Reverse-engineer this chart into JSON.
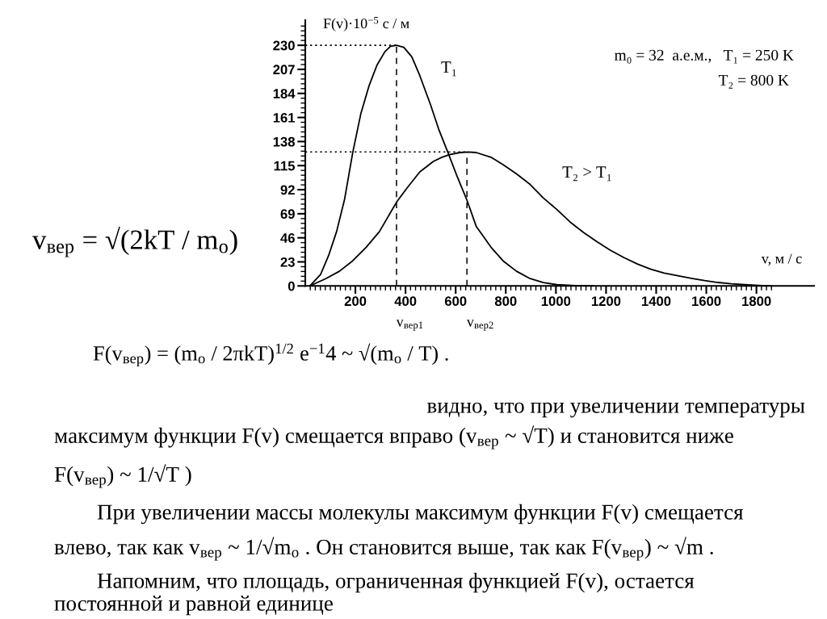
{
  "chart_data": {
    "type": "line",
    "xlabel": "v, м / с",
    "ylabel": "F(v)·10$^{−5}$ с / м",
    "xlim": [
      0,
      2030
    ],
    "ylim": [
      0,
      254
    ],
    "xticks": [
      {
        "value": 20,
        "label": null
      },
      {
        "value": 40,
        "label": null
      },
      {
        "value": 60,
        "label": null
      },
      {
        "value": 80,
        "label": null
      },
      {
        "value": 100,
        "label": null
      },
      {
        "value": 120,
        "label": null
      },
      {
        "value": 140,
        "label": null
      },
      {
        "value": 160,
        "label": null
      },
      {
        "value": 180,
        "label": null
      },
      200,
      {
        "value": 220,
        "label": null
      },
      {
        "value": 240,
        "label": null
      },
      {
        "value": 260,
        "label": null
      },
      {
        "value": 280,
        "label": null
      },
      {
        "value": 300,
        "label": null
      },
      {
        "value": 320,
        "label": null
      },
      {
        "value": 340,
        "label": null
      },
      {
        "value": 360,
        "label": null
      },
      {
        "value": 380,
        "label": null
      },
      400,
      {
        "value": 420,
        "label": null
      },
      {
        "value": 440,
        "label": null
      },
      {
        "value": 460,
        "label": null
      },
      {
        "value": 480,
        "label": null
      },
      {
        "value": 500,
        "label": null
      },
      {
        "value": 520,
        "label": null
      },
      {
        "value": 540,
        "label": null
      },
      {
        "value": 560,
        "label": null
      },
      {
        "value": 580,
        "label": null
      },
      600,
      {
        "value": 620,
        "label": null
      },
      {
        "value": 640,
        "label": null
      },
      {
        "value": 660,
        "label": null
      },
      {
        "value": 680,
        "label": null
      },
      {
        "value": 700,
        "label": null
      },
      {
        "value": 720,
        "label": null
      },
      {
        "value": 740,
        "label": null
      },
      {
        "value": 760,
        "label": null
      },
      {
        "value": 780,
        "label": null
      },
      800,
      {
        "value": 820,
        "label": null
      },
      {
        "value": 840,
        "label": null
      },
      {
        "value": 860,
        "label": null
      },
      {
        "value": 880,
        "label": null
      },
      {
        "value": 900,
        "label": null
      },
      {
        "value": 920,
        "label": null
      },
      {
        "value": 940,
        "label": null
      },
      {
        "value": 960,
        "label": null
      },
      {
        "value": 980,
        "label": null
      },
      1000,
      {
        "value": 1020,
        "label": null
      },
      {
        "value": 1040,
        "label": null
      },
      {
        "value": 1060,
        "label": null
      },
      {
        "value": 1080,
        "label": null
      },
      {
        "value": 1100,
        "label": null
      },
      {
        "value": 1120,
        "label": null
      },
      {
        "value": 1140,
        "label": null
      },
      {
        "value": 1160,
        "label": null
      },
      {
        "value": 1180,
        "label": null
      },
      1200,
      {
        "value": 1220,
        "label": null
      },
      {
        "value": 1240,
        "label": null
      },
      {
        "value": 1260,
        "label": null
      },
      {
        "value": 1280,
        "label": null
      },
      {
        "value": 1300,
        "label": null
      },
      {
        "value": 1320,
        "label": null
      },
      {
        "value": 1340,
        "label": null
      },
      {
        "value": 1360,
        "label": null
      },
      {
        "value": 1380,
        "label": null
      },
      1400,
      {
        "value": 1420,
        "label": null
      },
      {
        "value": 1440,
        "label": null
      },
      {
        "value": 1460,
        "label": null
      },
      {
        "value": 1480,
        "label": null
      },
      {
        "value": 1500,
        "label": null
      },
      {
        "value": 1520,
        "label": null
      },
      {
        "value": 1540,
        "label": null
      },
      {
        "value": 1560,
        "label": null
      },
      {
        "value": 1580,
        "label": null
      },
      1600,
      {
        "value": 1620,
        "label": null
      },
      {
        "value": 1640,
        "label": null
      },
      {
        "value": 1660,
        "label": null
      },
      {
        "value": 1680,
        "label": null
      },
      {
        "value": 1700,
        "label": null
      },
      {
        "value": 1720,
        "label": null
      },
      {
        "value": 1740,
        "label": null
      },
      {
        "value": 1760,
        "label": null
      },
      {
        "value": 1780,
        "label": null
      },
      1800,
      {
        "value": 1820,
        "label": null
      },
      {
        "value": 1840,
        "label": null
      },
      {
        "value": 1860,
        "label": null
      }
    ],
    "yticks": [
      0,
      {
        "value": 4.6,
        "label": null
      },
      {
        "value": 9.2,
        "label": null
      },
      {
        "value": 13.8,
        "label": null
      },
      {
        "value": 18.4,
        "label": null
      },
      23,
      {
        "value": 27.6,
        "label": null
      },
      {
        "value": 32.2,
        "label": null
      },
      {
        "value": 36.8,
        "label": null
      },
      {
        "value": 41.4,
        "label": null
      },
      46,
      {
        "value": 50.6,
        "label": null
      },
      {
        "value": 55.2,
        "label": null
      },
      {
        "value": 59.8,
        "label": null
      },
      {
        "value": 64.4,
        "label": null
      },
      69,
      {
        "value": 73.6,
        "label": null
      },
      {
        "value": 78.2,
        "label": null
      },
      {
        "value": 82.8,
        "label": null
      },
      {
        "value": 87.4,
        "label": null
      },
      92,
      {
        "value": 96.6,
        "label": null
      },
      {
        "value": 101.2,
        "label": null
      },
      {
        "value": 105.8,
        "label": null
      },
      {
        "value": 110.4,
        "label": null
      },
      115,
      {
        "value": 119.6,
        "label": null
      },
      {
        "value": 124.2,
        "label": null
      },
      {
        "value": 128.8,
        "label": null
      },
      {
        "value": 133.4,
        "label": null
      },
      138,
      {
        "value": 142.6,
        "label": null
      },
      {
        "value": 147.2,
        "label": null
      },
      {
        "value": 151.8,
        "label": null
      },
      {
        "value": 156.4,
        "label": null
      },
      161,
      {
        "value": 165.6,
        "label": null
      },
      {
        "value": 170.2,
        "label": null
      },
      {
        "value": 174.8,
        "label": null
      },
      {
        "value": 179.4,
        "label": null
      },
      184,
      {
        "value": 188.6,
        "label": null
      },
      {
        "value": 193.2,
        "label": null
      },
      {
        "value": 197.8,
        "label": null
      },
      {
        "value": 202.4,
        "label": null
      },
      207,
      {
        "value": 211.6,
        "label": null
      },
      {
        "value": 216.2,
        "label": null
      },
      {
        "value": 220.8,
        "label": null
      },
      {
        "value": 225.4,
        "label": null
      },
      230,
      {
        "value": 234.6,
        "label": null
      },
      {
        "value": 239.2,
        "label": null
      },
      {
        "value": 243.8,
        "label": null
      },
      {
        "value": 248.4,
        "label": null
      }
    ],
    "series": [
      {
        "color": "#000000",
        "x": [
          18,
          61,
          93,
          125,
          157,
          189,
          222,
          254,
          286,
          318,
          340,
          364,
          393,
          425,
          457,
          500,
          532,
          570,
          607,
          645,
          682,
          741,
          789,
          843,
          897,
          950,
          1004,
          1078,
          1150
        ],
        "values": [
          0,
          11,
          29,
          52,
          83,
          127,
          165,
          191,
          211,
          224,
          229,
          230,
          228,
          219,
          201,
          173,
          150,
          127,
          104,
          82,
          57,
          37,
          24,
          14,
          7,
          3.3,
          1.2,
          0.3,
          0
        ]
      },
      {
        "color": "#000000",
        "x": [
          18,
          82,
          136,
          189,
          243,
          296,
          364,
          404,
          457,
          511,
          545,
          575,
          618,
          650,
          682,
          741,
          789,
          843,
          897,
          950,
          1004,
          1057,
          1111,
          1165,
          1218,
          1272,
          1325,
          1379,
          1432,
          1486,
          1540,
          1593,
          1647,
          1700,
          1754,
          1810,
          1860
        ],
        "values": [
          0,
          7,
          14,
          24,
          37,
          52,
          80,
          93,
          109,
          119,
          123,
          125.5,
          127.5,
          128,
          127.5,
          123,
          116,
          107,
          97,
          84,
          73,
          61,
          51,
          42,
          34,
          27,
          21,
          16,
          12.3,
          9.7,
          7.2,
          5.1,
          3.3,
          2,
          1.2,
          0.5,
          0
        ]
      },
      {
        "color": "#000000",
        "line_style": "dotted",
        "x": [
          0,
          364
        ],
        "values": [
          230,
          230
        ]
      },
      {
        "color": "#000000",
        "line_style": "dashed",
        "x": [
          364,
          364
        ],
        "values": [
          0,
          230
        ]
      },
      {
        "color": "#000000",
        "line_style": "dotted",
        "x": [
          0,
          645
        ],
        "values": [
          128,
          128
        ]
      },
      {
        "color": "#000000",
        "line_style": "dashed",
        "x": [
          645,
          645
        ],
        "values": [
          0,
          128
        ]
      }
    ],
    "annotations": [
      "T₁",
      "T₂ > T₁",
      {
        "text": "v$_{вер1}$",
        "x": 364,
        "y": 0
      },
      {
        "text": "v$_{вер2}$",
        "x": 645,
        "y": 0
      },
      "m₀ = 32  а.е.м.,   T₁ = 250 K",
      "T₂ = 800 K",
      "v$_{вер}$ = √(2kT / m$_{o}$)",
      "F(v$_{вер}$) = (m$_{o}$ / 2πkT)$^{1/2}$ e$^{−1}$4 ~ √(m$_{o}$ / T) .",
      "видно, что при увеличении температуры",
      "максимум функции F(v) смещается вправо (v$_{вер}$ ~ √T) и становится ниже",
      "F(v$_{вер}$) ~ 1/√T )",
      "При увеличении массы молекулы максимум функции F(v) смещается",
      "влево, так как v$_{вер}$ ~ 1/√m$_{o}$ . Он становится выше, так как F(v$_{вер}$) ~ √m .",
      "Напомним, что площадь, ограниченная функцией F(v), остается",
      "постоянной и равной единице"
    ]
  }
}
